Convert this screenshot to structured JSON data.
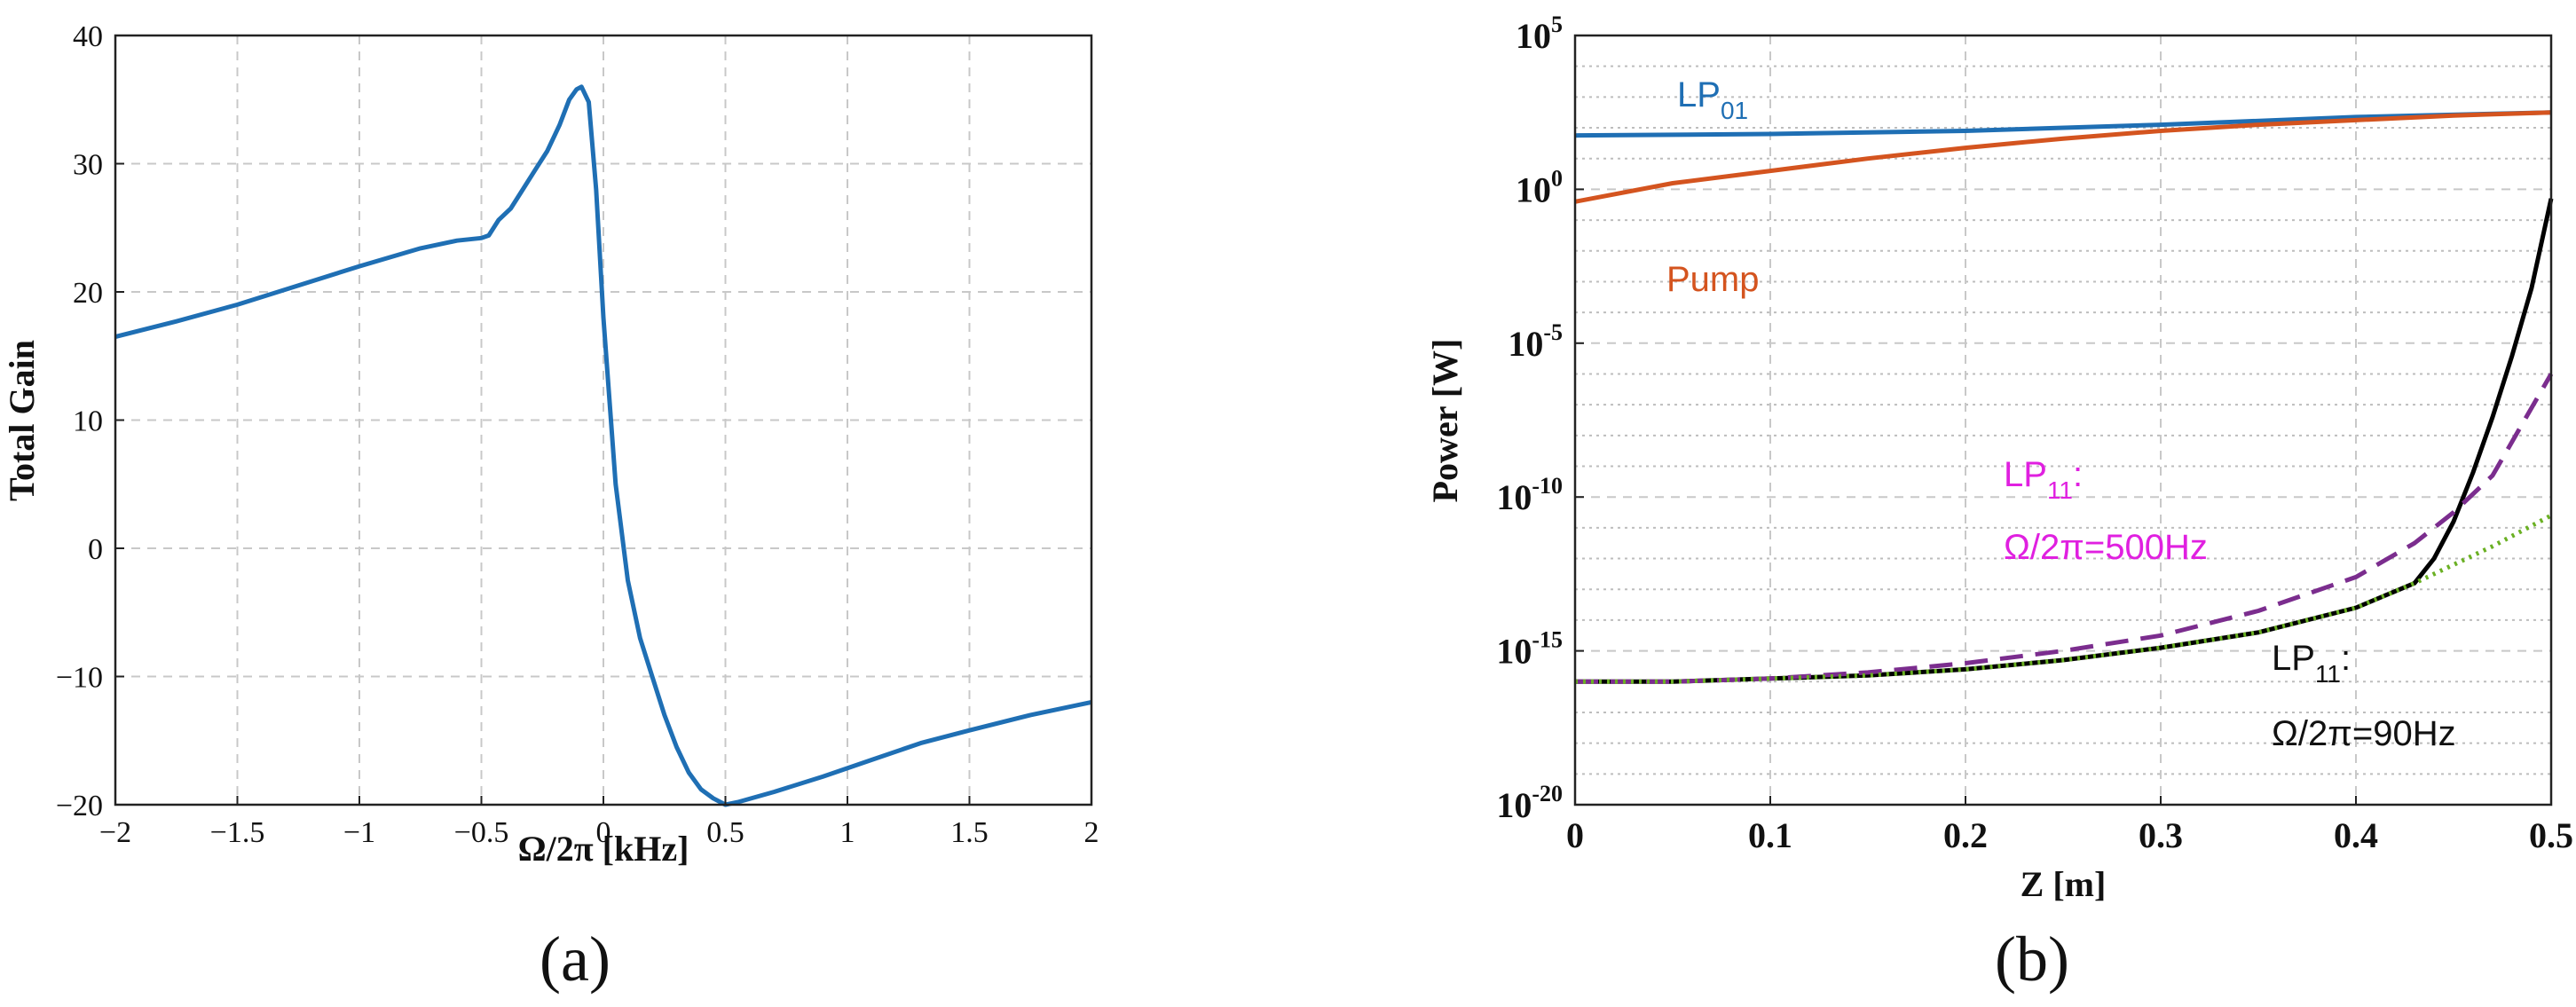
{
  "chart_data": [
    {
      "type": "line",
      "panel_label": "(a)",
      "xlabel": "Ω/2π [kHz]",
      "ylabel": "Total Gain",
      "xlim": [
        -2,
        2
      ],
      "ylim": [
        -20,
        40
      ],
      "grid": true,
      "xticks": [
        -2,
        -1.5,
        -1,
        -0.5,
        0,
        0.5,
        1,
        1.5,
        2
      ],
      "xtick_labels": [
        "−2",
        "−1.5",
        "−1",
        "−0.5",
        "0",
        "0.5",
        "1",
        "1.5",
        "2"
      ],
      "yticks": [
        -20,
        -10,
        0,
        10,
        20,
        30,
        40
      ],
      "ytick_labels": [
        "−20",
        "−10",
        "0",
        "10",
        "20",
        "30",
        "40"
      ],
      "series": [
        {
          "name": "Total Gain",
          "color": "#1f6fb4",
          "x": [
            -2,
            -1.75,
            -1.5,
            -1.25,
            -1.0,
            -0.75,
            -0.6,
            -0.5,
            -0.47,
            -0.43,
            -0.38,
            -0.33,
            -0.28,
            -0.23,
            -0.18,
            -0.14,
            -0.11,
            -0.09,
            -0.06,
            -0.03,
            0.0,
            0.05,
            0.1,
            0.15,
            0.2,
            0.25,
            0.3,
            0.35,
            0.4,
            0.45,
            0.5,
            0.55,
            0.7,
            0.9,
            1.1,
            1.3,
            1.5,
            1.75,
            2.0
          ],
          "y": [
            16.5,
            17.7,
            19.0,
            20.5,
            22.0,
            23.4,
            24.0,
            24.2,
            24.4,
            25.6,
            26.5,
            28.0,
            29.5,
            31.0,
            33.0,
            35.0,
            35.8,
            36.0,
            34.8,
            28.0,
            18.0,
            5.0,
            -2.5,
            -7.0,
            -10.0,
            -13.0,
            -15.5,
            -17.5,
            -18.8,
            -19.5,
            -20.0,
            -19.8,
            -19.0,
            -17.8,
            -16.5,
            -15.2,
            -14.2,
            -13.0,
            -12.0
          ]
        }
      ]
    },
    {
      "type": "line",
      "panel_label": "(b)",
      "xlabel": "Z [m]",
      "ylabel": "Power [W]",
      "xlim": [
        0,
        0.5
      ],
      "ylim_log10": [
        -20,
        5
      ],
      "yscale": "log",
      "grid": true,
      "xticks": [
        0,
        0.1,
        0.2,
        0.3,
        0.4,
        0.5
      ],
      "xtick_labels": [
        "0",
        "0.1",
        "0.2",
        "0.3",
        "0.4",
        "0.5"
      ],
      "ytick_base": "10",
      "ytick_exponents": [
        "5",
        "0",
        "-5",
        "-10",
        "-15",
        "-20"
      ],
      "series": [
        {
          "name": "LP01",
          "color": "#1f6fb4",
          "dash": "solid",
          "x": [
            0,
            0.1,
            0.2,
            0.3,
            0.4,
            0.5
          ],
          "log10_y": [
            1.75,
            1.8,
            1.9,
            2.1,
            2.35,
            2.5
          ]
        },
        {
          "name": "Pump",
          "color": "#d4541f",
          "dash": "solid",
          "x": [
            0,
            0.05,
            0.1,
            0.15,
            0.2,
            0.25,
            0.3,
            0.35,
            0.4,
            0.45,
            0.5
          ],
          "log10_y": [
            -0.4,
            0.2,
            0.6,
            1.0,
            1.35,
            1.65,
            1.9,
            2.1,
            2.25,
            2.4,
            2.5
          ]
        },
        {
          "name": "LP11 Ω/2π=90Hz",
          "color": "#000000",
          "dash": "solid",
          "x": [
            0,
            0.05,
            0.1,
            0.15,
            0.2,
            0.25,
            0.3,
            0.35,
            0.4,
            0.43,
            0.44,
            0.45,
            0.46,
            0.47,
            0.48,
            0.49,
            0.5
          ],
          "log10_y": [
            -16.0,
            -16.0,
            -15.9,
            -15.8,
            -15.6,
            -15.3,
            -14.9,
            -14.4,
            -13.6,
            -12.8,
            -12.0,
            -10.8,
            -9.2,
            -7.4,
            -5.4,
            -3.2,
            -0.3
          ]
        },
        {
          "name": "LP11 Ω/2π=500Hz",
          "color": "#7b2d8e",
          "dash": "dashed",
          "x": [
            0,
            0.05,
            0.1,
            0.15,
            0.2,
            0.25,
            0.3,
            0.35,
            0.4,
            0.43,
            0.45,
            0.47,
            0.5
          ],
          "log10_y": [
            -16.0,
            -16.0,
            -15.9,
            -15.7,
            -15.4,
            -15.0,
            -14.5,
            -13.7,
            -12.6,
            -11.5,
            -10.5,
            -9.3,
            -6.0
          ]
        },
        {
          "name": "Green dotted",
          "color": "#6ab023",
          "dash": "dotted",
          "x": [
            0,
            0.05,
            0.1,
            0.15,
            0.2,
            0.25,
            0.3,
            0.35,
            0.4,
            0.43,
            0.45,
            0.47,
            0.5
          ],
          "log10_y": [
            -16.0,
            -16.0,
            -15.9,
            -15.8,
            -15.6,
            -15.3,
            -14.9,
            -14.4,
            -13.6,
            -12.8,
            -12.2,
            -11.6,
            -10.6
          ]
        }
      ],
      "annotations": {
        "lp01": {
          "main": "LP",
          "sub": "01",
          "color": "#1f6fb4"
        },
        "pump": {
          "text": "Pump",
          "color": "#d4541f"
        },
        "lp11_500": {
          "main": "LP",
          "sub": "11",
          "suffix": ":",
          "line2": "Ω/2π=500Hz",
          "color": "#e020e0"
        },
        "lp11_90": {
          "main": "LP",
          "sub": "11",
          "suffix": ":",
          "line2": "Ω/2π=90Hz",
          "color": "#111111"
        }
      }
    }
  ]
}
